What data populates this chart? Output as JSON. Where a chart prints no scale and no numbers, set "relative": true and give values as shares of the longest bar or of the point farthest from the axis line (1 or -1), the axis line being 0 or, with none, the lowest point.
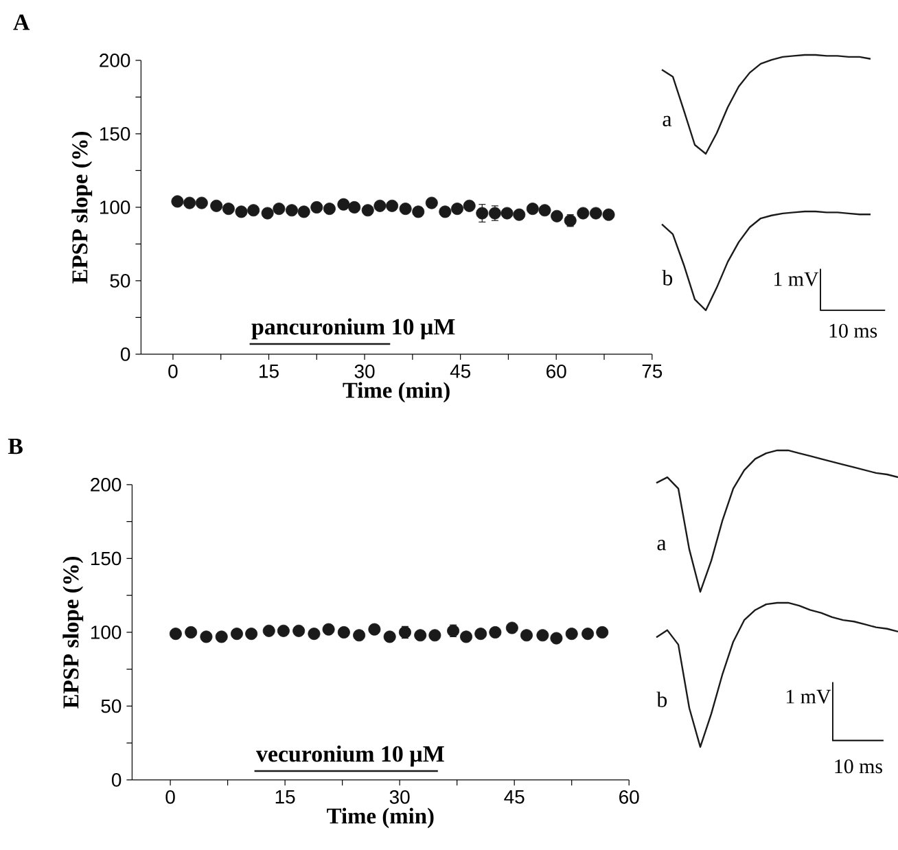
{
  "chart_data": [
    {
      "type": "scatter",
      "title": "A",
      "xlabel": "Time (min)",
      "ylabel": "EPSP slope (%)",
      "xlim": [
        -5,
        75
      ],
      "xticks": [
        0,
        {
          "value": 7.5,
          "label": null
        },
        15,
        {
          "value": 22.5,
          "label": null
        },
        30,
        {
          "value": 37.5,
          "label": null
        },
        45,
        {
          "value": 52.5,
          "label": null
        },
        60,
        {
          "value": 67.5,
          "label": null
        },
        75
      ],
      "ylim": [
        0,
        200
      ],
      "yticks": [
        0,
        {
          "value": 25,
          "label": null
        },
        50,
        {
          "value": 75,
          "label": null
        },
        100,
        {
          "value": 125,
          "label": null
        },
        150,
        {
          "value": 175,
          "label": null
        },
        200
      ],
      "series": [
        {
          "type": "scatter",
          "marker": "circle",
          "color": "#1a1a1a",
          "x": [
            0.7,
            2.6,
            4.5,
            6.8,
            8.7,
            10.7,
            12.6,
            14.8,
            16.6,
            18.6,
            20.5,
            22.5,
            24.5,
            26.7,
            28.4,
            30.5,
            32.4,
            34.3,
            36.4,
            38.4,
            40.5,
            42.6,
            44.5,
            46.4,
            48.4,
            50.4,
            52.3,
            54.2,
            56.3,
            58.2,
            60.1,
            62.2,
            64.2,
            66.2,
            68.2
          ],
          "values": [
            104,
            103,
            103,
            101,
            99,
            97,
            98,
            96,
            99,
            98,
            97,
            100,
            99,
            102,
            100,
            98,
            101,
            101,
            99,
            97,
            103,
            97,
            99,
            101,
            96,
            96,
            96,
            95,
            99,
            98,
            94,
            91,
            96,
            96,
            95
          ],
          "errors": [
            1,
            1,
            1,
            1,
            1,
            2,
            2,
            3,
            2,
            2,
            2,
            2,
            2,
            2,
            3,
            3,
            2,
            2,
            2,
            3,
            2,
            3,
            3,
            3,
            6,
            5,
            2,
            2,
            2,
            2,
            2,
            4,
            2,
            2,
            2
          ]
        },
        {
          "type": "line",
          "name": "pancuronium 10 µM",
          "color": "#1a1a1a",
          "marker": "none",
          "x": [
            12,
            34
          ],
          "values": [
            7,
            7
          ]
        }
      ]
    },
    {
      "type": "line",
      "relative": true,
      "categories": [
        null,
        null,
        null,
        null,
        null,
        null,
        null,
        null,
        null,
        null,
        null,
        null,
        null,
        null,
        null,
        null,
        null,
        null,
        null,
        null
      ],
      "series": [
        {
          "name": "a",
          "color": "#1a1a1a",
          "values": [
            0.85,
            0.78,
            0.44,
            0.09,
            0,
            0.21,
            0.47,
            0.68,
            0.82,
            0.91,
            0.95,
            0.98,
            0.99,
            1,
            1,
            0.99,
            0.99,
            0.98,
            0.98,
            0.96
          ]
        }
      ]
    },
    {
      "type": "line",
      "relative": true,
      "categories": [
        null,
        null,
        null,
        null,
        null,
        null,
        null,
        null,
        null,
        null,
        null,
        null,
        null,
        null,
        null,
        null,
        null,
        null,
        null,
        null
      ],
      "series": [
        {
          "name": "b",
          "color": "#1a1a1a",
          "values": [
            0.87,
            0.77,
            0.46,
            0.11,
            0,
            0.23,
            0.49,
            0.69,
            0.84,
            0.93,
            0.96,
            0.98,
            0.99,
            1,
            1,
            0.99,
            0.99,
            0.98,
            0.97,
            0.97
          ]
        }
      ],
      "annotations": [
        "1 mV",
        "10 ms"
      ]
    },
    {
      "type": "scatter",
      "title": "B",
      "xlabel": "Time (min)",
      "ylabel": "EPSP slope (%)",
      "xlim": [
        -5,
        60
      ],
      "xticks": [
        0,
        {
          "value": 7.5,
          "label": null
        },
        15,
        {
          "value": 22.5,
          "label": null
        },
        30,
        {
          "value": 37.5,
          "label": null
        },
        45,
        {
          "value": 52.5,
          "label": null
        },
        60
      ],
      "ylim": [
        0,
        200
      ],
      "yticks": [
        0,
        {
          "value": 25,
          "label": null
        },
        50,
        {
          "value": 75,
          "label": null
        },
        100,
        {
          "value": 125,
          "label": null
        },
        150,
        {
          "value": 175,
          "label": null
        },
        200
      ],
      "series": [
        {
          "type": "scatter",
          "marker": "circle",
          "color": "#1a1a1a",
          "x": [
            0.7,
            2.7,
            4.7,
            6.7,
            8.7,
            10.6,
            12.9,
            14.8,
            16.8,
            18.8,
            20.7,
            22.7,
            24.7,
            26.7,
            28.7,
            30.7,
            32.7,
            34.6,
            37.0,
            38.7,
            40.6,
            42.5,
            44.7,
            46.6,
            48.7,
            50.5,
            52.5,
            54.6,
            56.5
          ],
          "values": [
            99,
            100,
            97,
            97,
            99,
            99,
            101,
            101,
            101,
            99,
            102,
            100,
            98,
            102,
            97,
            100,
            98,
            98,
            101,
            97,
            99,
            100,
            103,
            98,
            98,
            96,
            99,
            99,
            100
          ],
          "errors": [
            1,
            1,
            1,
            1,
            1,
            1,
            1,
            1,
            2,
            2,
            1,
            2,
            3,
            2,
            2,
            4,
            2,
            2,
            4,
            2,
            2,
            2,
            2,
            2,
            2,
            2,
            2,
            3,
            2
          ]
        },
        {
          "type": "line",
          "name": "vecuronium 10 µM",
          "color": "#1a1a1a",
          "marker": "none",
          "x": [
            11,
            35
          ],
          "values": [
            6,
            6
          ]
        }
      ]
    },
    {
      "type": "line",
      "relative": true,
      "categories": [
        null,
        null,
        null,
        null,
        null,
        null,
        null,
        null,
        null,
        null,
        null,
        null,
        null,
        null,
        null,
        null,
        null,
        null,
        null,
        null,
        null,
        null,
        null
      ],
      "series": [
        {
          "name": "a",
          "color": "#1a1a1a",
          "values": [
            0.77,
            0.81,
            0.73,
            0.3,
            0,
            0.22,
            0.5,
            0.73,
            0.86,
            0.94,
            0.98,
            1,
            1,
            0.98,
            0.96,
            0.94,
            0.92,
            0.9,
            0.88,
            0.86,
            0.84,
            0.83,
            0.81
          ]
        }
      ]
    },
    {
      "type": "line",
      "relative": true,
      "categories": [
        null,
        null,
        null,
        null,
        null,
        null,
        null,
        null,
        null,
        null,
        null,
        null,
        null,
        null,
        null,
        null,
        null,
        null,
        null,
        null,
        null,
        null,
        null
      ],
      "series": [
        {
          "name": "b",
          "color": "#1a1a1a",
          "values": [
            0.76,
            0.81,
            0.71,
            0.27,
            0,
            0.23,
            0.5,
            0.73,
            0.88,
            0.95,
            0.99,
            1,
            1,
            0.98,
            0.95,
            0.93,
            0.9,
            0.88,
            0.87,
            0.85,
            0.83,
            0.82,
            0.8
          ]
        }
      ],
      "annotations": [
        "1 mV",
        "10 ms"
      ]
    }
  ]
}
